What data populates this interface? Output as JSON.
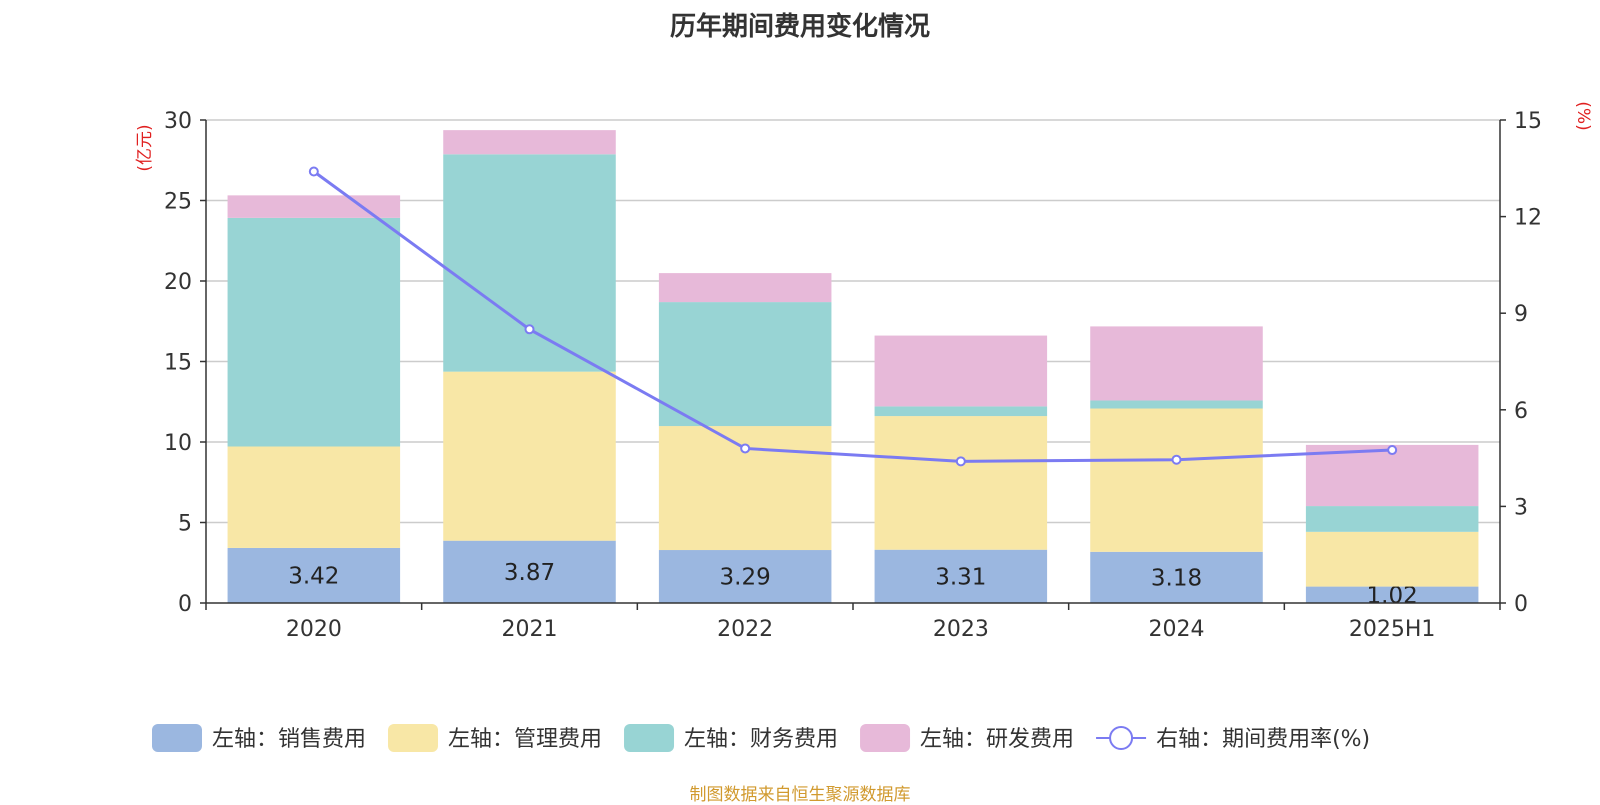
{
  "chart_data": {
    "type": "bar",
    "title": "历年期间费用变化情况",
    "categories": [
      "2020",
      "2021",
      "2022",
      "2023",
      "2024",
      "2025H1"
    ],
    "y_left": {
      "unit_label": "(亿元)",
      "min": 0,
      "max": 30,
      "ticks": [
        0,
        5,
        10,
        15,
        20,
        25,
        30
      ]
    },
    "y_right": {
      "unit_label": "(%)",
      "min": 0,
      "max": 15,
      "ticks": [
        0,
        3,
        6,
        9,
        12,
        15
      ]
    },
    "stacked": true,
    "series": [
      {
        "name": "左轴：销售费用",
        "axis": "left",
        "type": "bar",
        "color": "#9bb7e0",
        "values": [
          3.42,
          3.87,
          3.29,
          3.31,
          3.18,
          1.02
        ],
        "show_labels": true
      },
      {
        "name": "左轴：管理费用",
        "axis": "left",
        "type": "bar",
        "color": "#f8e7a6",
        "values": [
          6.3,
          10.5,
          7.7,
          8.3,
          8.9,
          3.4
        ]
      },
      {
        "name": "左轴：财务费用",
        "axis": "left",
        "type": "bar",
        "color": "#98d4d4",
        "values": [
          14.2,
          13.5,
          7.7,
          0.6,
          0.5,
          1.6
        ]
      },
      {
        "name": "左轴：研发费用",
        "axis": "left",
        "type": "bar",
        "color": "#e7b9d9",
        "values": [
          1.4,
          1.5,
          1.8,
          4.4,
          4.6,
          3.8
        ]
      },
      {
        "name": "右轴：期间费用率(%)",
        "axis": "right",
        "type": "line",
        "color": "#7b7bf2",
        "values": [
          13.4,
          8.5,
          4.8,
          4.4,
          4.45,
          4.75
        ]
      }
    ],
    "grid": true,
    "legend_position": "bottom"
  },
  "source": "制图数据来自恒生聚源数据库",
  "colors": {
    "axis_label": "#e02020",
    "text": "#333333",
    "grid": "#cccccc"
  }
}
